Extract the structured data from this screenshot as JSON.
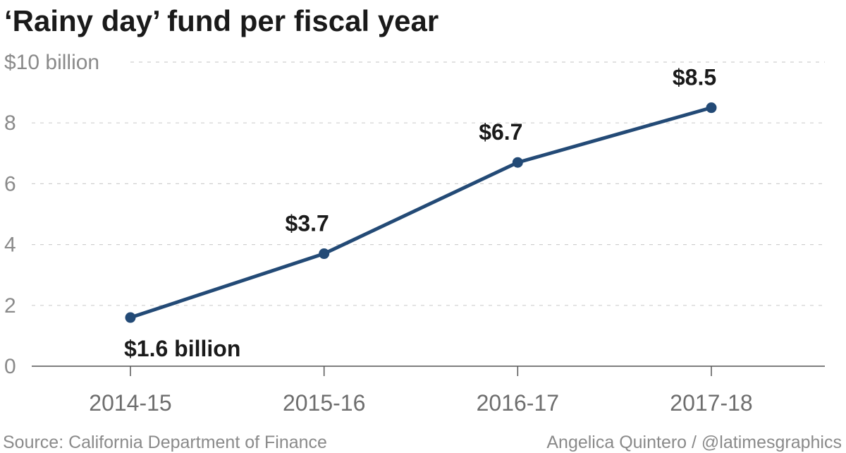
{
  "chart_data": {
    "type": "line",
    "title": "‘Rainy day’ fund per fiscal year",
    "categories": [
      "2014-15",
      "2015-16",
      "2016-17",
      "2017-18"
    ],
    "values": [
      1.6,
      3.7,
      6.7,
      8.5
    ],
    "data_labels": [
      "$1.6 billion",
      "$3.7",
      "$6.7",
      "$8.5"
    ],
    "y_ticks": [
      0,
      2,
      4,
      6,
      8,
      10
    ],
    "y_tick_labels": [
      "0",
      "2",
      "4",
      "6",
      "8",
      "$10 billion"
    ],
    "ylim": [
      0,
      10
    ],
    "grid": true,
    "line_color": "#234a76"
  },
  "footer": {
    "source": "Source: California Department of Finance",
    "credit": "Angelica Quintero / @latimesgraphics"
  }
}
